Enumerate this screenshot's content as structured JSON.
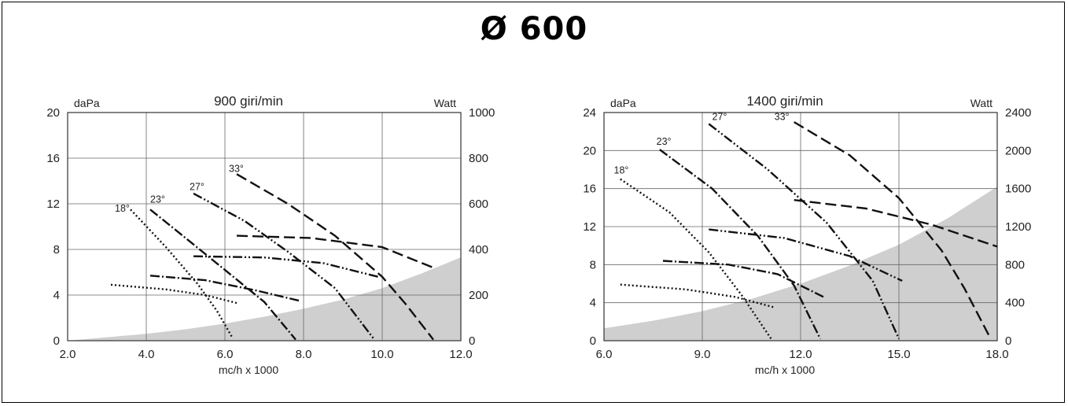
{
  "page": {
    "title": "Ø 600"
  },
  "chart_data": [
    {
      "type": "line",
      "title": "900 giri/min",
      "left_axis_label": "daPa",
      "right_axis_label": "Watt",
      "xlabel": "mc/h x 1000",
      "xlim": [
        2.0,
        12.0
      ],
      "ylim": [
        0,
        20
      ],
      "y2lim": [
        0,
        1000
      ],
      "x_ticks": [
        "2.0",
        "4.0",
        "6.0",
        "8.0",
        "10.0",
        "12.0"
      ],
      "y_ticks": [
        "0",
        "4",
        "8",
        "12",
        "16",
        "20"
      ],
      "y2_ticks": [
        "0",
        "200",
        "400",
        "600",
        "800",
        "1000"
      ],
      "grid": true,
      "shaded_area_upper": [
        [
          2.0,
          0.0
        ],
        [
          3.0,
          0.3
        ],
        [
          4.0,
          0.6
        ],
        [
          5.0,
          1.0
        ],
        [
          6.0,
          1.5
        ],
        [
          7.0,
          2.1
        ],
        [
          8.0,
          2.8
        ],
        [
          9.0,
          3.6
        ],
        [
          10.0,
          4.6
        ],
        [
          11.0,
          5.9
        ],
        [
          12.0,
          7.3
        ]
      ],
      "pressure_series": [
        {
          "name": "18°",
          "dash": "2,3",
          "points": [
            [
              3.6,
              11.5
            ],
            [
              4.5,
              8.2
            ],
            [
              5.3,
              5.0
            ],
            [
              5.8,
              2.6
            ],
            [
              6.2,
              0.2
            ]
          ]
        },
        {
          "name": "23°",
          "dash": "12,3,2,3",
          "points": [
            [
              4.1,
              11.5
            ],
            [
              5.0,
              9.0
            ],
            [
              6.0,
              6.2
            ],
            [
              7.0,
              3.4
            ],
            [
              7.8,
              0.1
            ]
          ]
        },
        {
          "name": "27°",
          "dash": "12,3,2,3,2,3",
          "points": [
            [
              5.2,
              12.9
            ],
            [
              6.5,
              10.5
            ],
            [
              7.6,
              7.8
            ],
            [
              8.8,
              4.6
            ],
            [
              9.8,
              0.1
            ]
          ]
        },
        {
          "name": "33°",
          "dash": "14,6",
          "points": [
            [
              6.3,
              14.6
            ],
            [
              7.6,
              12.0
            ],
            [
              8.8,
              9.2
            ],
            [
              10.0,
              5.6
            ],
            [
              10.6,
              3.2
            ],
            [
              11.3,
              0.1
            ]
          ]
        }
      ],
      "power_series": [
        {
          "name": "18°",
          "dash": "2,3",
          "points": [
            [
              3.1,
              4.9
            ],
            [
              4.5,
              4.5
            ],
            [
              5.5,
              4.0
            ],
            [
              6.3,
              3.3
            ]
          ]
        },
        {
          "name": "23°",
          "dash": "12,3,2,3",
          "points": [
            [
              4.1,
              5.7
            ],
            [
              5.5,
              5.3
            ],
            [
              6.8,
              4.4
            ],
            [
              7.9,
              3.5
            ]
          ]
        },
        {
          "name": "27°",
          "dash": "12,3,2,3,2,3",
          "points": [
            [
              5.2,
              7.4
            ],
            [
              7.0,
              7.3
            ],
            [
              8.5,
              6.8
            ],
            [
              9.9,
              5.6
            ]
          ]
        },
        {
          "name": "33°",
          "dash": "14,6",
          "points": [
            [
              6.3,
              9.2
            ],
            [
              8.2,
              9.0
            ],
            [
              10.0,
              8.2
            ],
            [
              11.3,
              6.4
            ]
          ]
        }
      ],
      "angle_labels": [
        {
          "text": "18°",
          "at": [
            3.2,
            11.3
          ]
        },
        {
          "text": "23°",
          "at": [
            4.1,
            12.1
          ]
        },
        {
          "text": "27°",
          "at": [
            5.1,
            13.2
          ]
        },
        {
          "text": "33°",
          "at": [
            6.1,
            14.8
          ]
        }
      ]
    },
    {
      "type": "line",
      "title": "1400 giri/min",
      "left_axis_label": "daPa",
      "right_axis_label": "Watt",
      "xlabel": "mc/h x 1000",
      "xlim": [
        6.0,
        18.0
      ],
      "ylim": [
        0,
        24
      ],
      "y2lim": [
        0,
        2400
      ],
      "x_ticks": [
        "6.0",
        "9.0",
        "12.0",
        "15.0",
        "18.0"
      ],
      "y_ticks": [
        "0",
        "4",
        "8",
        "12",
        "16",
        "20",
        "24"
      ],
      "y2_ticks": [
        "0",
        "400",
        "800",
        "1200",
        "1600",
        "2000",
        "2400"
      ],
      "grid": true,
      "shaded_area_upper": [
        [
          6.0,
          1.3
        ],
        [
          7.5,
          2.1
        ],
        [
          9.0,
          3.1
        ],
        [
          10.5,
          4.4
        ],
        [
          12.0,
          6.0
        ],
        [
          13.5,
          7.9
        ],
        [
          15.0,
          10.1
        ],
        [
          16.5,
          12.9
        ],
        [
          18.0,
          16.2
        ]
      ],
      "pressure_series": [
        {
          "name": "18°",
          "dash": "2,3",
          "points": [
            [
              6.5,
              17.0
            ],
            [
              8.0,
              13.5
            ],
            [
              9.2,
              9.3
            ],
            [
              10.2,
              4.8
            ],
            [
              11.1,
              0.2
            ]
          ]
        },
        {
          "name": "23°",
          "dash": "12,3,2,3",
          "points": [
            [
              7.7,
              20.1
            ],
            [
              9.3,
              16.0
            ],
            [
              10.7,
              11.0
            ],
            [
              11.8,
              5.8
            ],
            [
              12.6,
              0.2
            ]
          ]
        },
        {
          "name": "27°",
          "dash": "12,3,2,3,2,3",
          "points": [
            [
              9.2,
              22.8
            ],
            [
              11.0,
              18.0
            ],
            [
              12.8,
              12.4
            ],
            [
              14.2,
              6.3
            ],
            [
              15.0,
              0.2
            ]
          ]
        },
        {
          "name": "33°",
          "dash": "14,6",
          "points": [
            [
              11.8,
              23.0
            ],
            [
              13.5,
              19.5
            ],
            [
              15.0,
              15.0
            ],
            [
              16.3,
              9.5
            ],
            [
              17.0,
              5.5
            ],
            [
              17.8,
              0.2
            ]
          ]
        }
      ],
      "power_series": [
        {
          "name": "18°",
          "dash": "2,3",
          "points": [
            [
              6.5,
              5.9
            ],
            [
              8.5,
              5.4
            ],
            [
              10.0,
              4.6
            ],
            [
              11.2,
              3.5
            ]
          ]
        },
        {
          "name": "23°",
          "dash": "12,3,2,3",
          "points": [
            [
              7.8,
              8.4
            ],
            [
              9.8,
              8.0
            ],
            [
              11.3,
              7.0
            ],
            [
              12.7,
              4.6
            ]
          ]
        },
        {
          "name": "27°",
          "dash": "12,3,2,3,2,3",
          "points": [
            [
              9.2,
              11.7
            ],
            [
              11.5,
              10.8
            ],
            [
              13.5,
              8.9
            ],
            [
              15.1,
              6.3
            ]
          ]
        },
        {
          "name": "33°",
          "dash": "14,6",
          "points": [
            [
              11.8,
              14.8
            ],
            [
              14.0,
              13.9
            ],
            [
              16.0,
              12.2
            ],
            [
              18.0,
              9.9
            ]
          ]
        }
      ],
      "angle_labels": [
        {
          "text": "18°",
          "at": [
            6.3,
            17.6
          ]
        },
        {
          "text": "23°",
          "at": [
            7.6,
            20.6
          ]
        },
        {
          "text": "27°",
          "at": [
            9.3,
            23.2
          ]
        },
        {
          "text": "33°",
          "at": [
            11.2,
            23.2
          ]
        }
      ]
    }
  ]
}
